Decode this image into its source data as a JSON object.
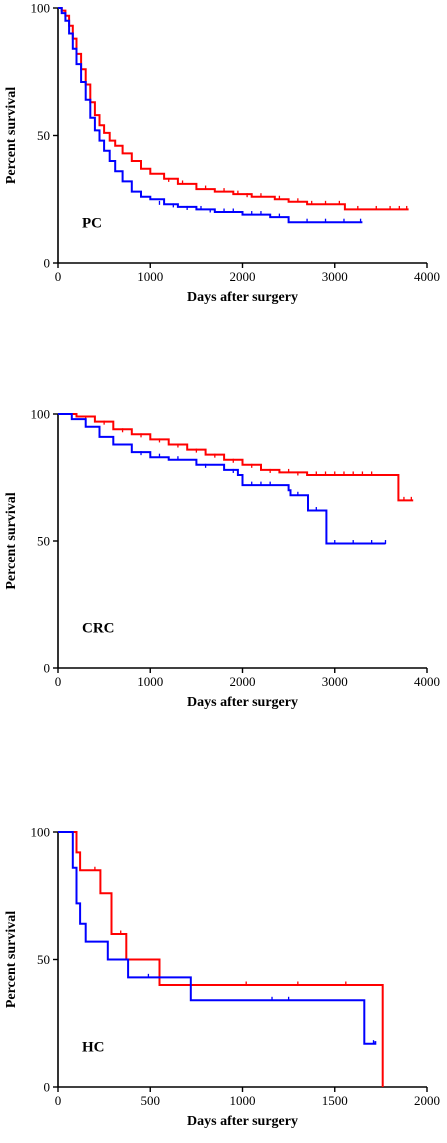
{
  "chart_data": [
    {
      "type": "line",
      "chart_kind": "kaplan-meier step survival curve",
      "panel_label": "PC",
      "xlabel": "Days after surgery",
      "ylabel": "Percent survival",
      "xlim": [
        0,
        4000
      ],
      "ylim": [
        0,
        100
      ],
      "xticks": [
        0,
        1000,
        2000,
        3000,
        4000
      ],
      "yticks": [
        0,
        50,
        100
      ],
      "grid": false,
      "legend": "none",
      "series": [
        {
          "color": "#ff0000",
          "points": [
            [
              0,
              100
            ],
            [
              40,
              99
            ],
            [
              80,
              97
            ],
            [
              120,
              93
            ],
            [
              160,
              88
            ],
            [
              200,
              82
            ],
            [
              250,
              76
            ],
            [
              300,
              70
            ],
            [
              350,
              63
            ],
            [
              400,
              58
            ],
            [
              450,
              54
            ],
            [
              500,
              51
            ],
            [
              560,
              48
            ],
            [
              620,
              46
            ],
            [
              700,
              43
            ],
            [
              800,
              40
            ],
            [
              900,
              37
            ],
            [
              1000,
              35
            ],
            [
              1150,
              33
            ],
            [
              1300,
              31
            ],
            [
              1500,
              29
            ],
            [
              1700,
              28
            ],
            [
              1900,
              27
            ],
            [
              2100,
              26
            ],
            [
              2350,
              25
            ],
            [
              2500,
              24
            ],
            [
              2700,
              23
            ],
            [
              3100,
              23
            ],
            [
              3110,
              21
            ],
            [
              3800,
              21
            ]
          ],
          "censor_marks": [
            [
              1200,
              32
            ],
            [
              1350,
              31
            ],
            [
              1600,
              29
            ],
            [
              1800,
              28
            ],
            [
              1950,
              27
            ],
            [
              2050,
              26
            ],
            [
              2200,
              26
            ],
            [
              2400,
              25
            ],
            [
              2600,
              24
            ],
            [
              2750,
              23
            ],
            [
              2900,
              23
            ],
            [
              3050,
              23
            ],
            [
              3250,
              21
            ],
            [
              3450,
              21
            ],
            [
              3600,
              21
            ],
            [
              3700,
              21
            ],
            [
              3780,
              21
            ]
          ]
        },
        {
          "color": "#0000ff",
          "points": [
            [
              0,
              100
            ],
            [
              40,
              98
            ],
            [
              80,
              95
            ],
            [
              120,
              90
            ],
            [
              160,
              84
            ],
            [
              200,
              78
            ],
            [
              250,
              71
            ],
            [
              300,
              64
            ],
            [
              350,
              57
            ],
            [
              400,
              52
            ],
            [
              450,
              48
            ],
            [
              500,
              44
            ],
            [
              560,
              40
            ],
            [
              620,
              36
            ],
            [
              700,
              32
            ],
            [
              800,
              28
            ],
            [
              900,
              26
            ],
            [
              1000,
              25
            ],
            [
              1150,
              23
            ],
            [
              1300,
              22
            ],
            [
              1500,
              21
            ],
            [
              1700,
              20
            ],
            [
              2000,
              19
            ],
            [
              2300,
              18
            ],
            [
              2500,
              16
            ],
            [
              3300,
              16
            ]
          ],
          "censor_marks": [
            [
              1100,
              23
            ],
            [
              1250,
              22
            ],
            [
              1400,
              21
            ],
            [
              1550,
              21
            ],
            [
              1650,
              20
            ],
            [
              1800,
              20
            ],
            [
              1900,
              20
            ],
            [
              2100,
              19
            ],
            [
              2200,
              19
            ],
            [
              2400,
              18
            ],
            [
              2700,
              16
            ],
            [
              2900,
              16
            ],
            [
              3100,
              16
            ],
            [
              3280,
              16
            ]
          ]
        }
      ]
    },
    {
      "type": "line",
      "chart_kind": "kaplan-meier step survival curve",
      "panel_label": "CRC",
      "xlabel": "Days after surgery",
      "ylabel": "Percent survival",
      "xlim": [
        0,
        4000
      ],
      "ylim": [
        0,
        100
      ],
      "xticks": [
        0,
        1000,
        2000,
        3000,
        4000
      ],
      "yticks": [
        0,
        50,
        100
      ],
      "grid": false,
      "legend": "none",
      "series": [
        {
          "color": "#ff0000",
          "points": [
            [
              0,
              100
            ],
            [
              200,
              99
            ],
            [
              400,
              97
            ],
            [
              600,
              94
            ],
            [
              800,
              92
            ],
            [
              1000,
              90
            ],
            [
              1200,
              88
            ],
            [
              1400,
              86
            ],
            [
              1600,
              84
            ],
            [
              1800,
              82
            ],
            [
              2000,
              80
            ],
            [
              2200,
              78
            ],
            [
              2400,
              77
            ],
            [
              2700,
              76
            ],
            [
              3680,
              76
            ],
            [
              3690,
              66
            ],
            [
              3850,
              66
            ]
          ],
          "censor_marks": [
            [
              300,
              98
            ],
            [
              500,
              96
            ],
            [
              700,
              93
            ],
            [
              900,
              91
            ],
            [
              1100,
              89
            ],
            [
              1300,
              87
            ],
            [
              1500,
              85
            ],
            [
              1700,
              83
            ],
            [
              1900,
              81
            ],
            [
              2100,
              79
            ],
            [
              2300,
              77
            ],
            [
              2500,
              77
            ],
            [
              2600,
              76
            ],
            [
              2800,
              76
            ],
            [
              2900,
              76
            ],
            [
              3000,
              76
            ],
            [
              3100,
              76
            ],
            [
              3200,
              76
            ],
            [
              3300,
              76
            ],
            [
              3400,
              76
            ],
            [
              3750,
              66
            ],
            [
              3830,
              66
            ]
          ]
        },
        {
          "color": "#0000ff",
          "points": [
            [
              0,
              100
            ],
            [
              150,
              98
            ],
            [
              300,
              95
            ],
            [
              450,
              91
            ],
            [
              600,
              88
            ],
            [
              800,
              85
            ],
            [
              1000,
              83
            ],
            [
              1200,
              82
            ],
            [
              1500,
              80
            ],
            [
              1800,
              78
            ],
            [
              1950,
              76
            ],
            [
              2000,
              72
            ],
            [
              2500,
              70
            ],
            [
              2520,
              68
            ],
            [
              2700,
              68
            ],
            [
              2710,
              62
            ],
            [
              2900,
              62
            ],
            [
              2910,
              49
            ],
            [
              3550,
              49
            ]
          ],
          "censor_marks": [
            [
              900,
              84
            ],
            [
              1100,
              83
            ],
            [
              1300,
              82
            ],
            [
              1600,
              79
            ],
            [
              1900,
              77
            ],
            [
              2100,
              72
            ],
            [
              2200,
              72
            ],
            [
              2300,
              72
            ],
            [
              2600,
              68
            ],
            [
              2800,
              62
            ],
            [
              3000,
              49
            ],
            [
              3200,
              49
            ],
            [
              3400,
              49
            ],
            [
              3550,
              49
            ]
          ]
        }
      ]
    },
    {
      "type": "line",
      "chart_kind": "kaplan-meier step survival curve",
      "panel_label": "HC",
      "xlabel": "Days after surgery",
      "ylabel": "Percent survival",
      "xlim": [
        0,
        2000
      ],
      "ylim": [
        0,
        100
      ],
      "xticks": [
        0,
        500,
        1000,
        1500,
        2000
      ],
      "yticks": [
        0,
        50,
        100
      ],
      "grid": false,
      "legend": "none",
      "series": [
        {
          "color": "#ff0000",
          "points": [
            [
              0,
              100
            ],
            [
              100,
              100
            ],
            [
              100,
              92
            ],
            [
              120,
              92
            ],
            [
              120,
              85
            ],
            [
              230,
              85
            ],
            [
              230,
              76
            ],
            [
              290,
              76
            ],
            [
              290,
              60
            ],
            [
              370,
              60
            ],
            [
              370,
              50
            ],
            [
              550,
              50
            ],
            [
              550,
              40
            ],
            [
              1760,
              40
            ],
            [
              1760,
              0
            ]
          ],
          "censor_marks": [
            [
              200,
              85
            ],
            [
              340,
              60
            ],
            [
              1020,
              40
            ],
            [
              1300,
              40
            ],
            [
              1560,
              40
            ]
          ]
        },
        {
          "color": "#0000ff",
          "points": [
            [
              0,
              100
            ],
            [
              80,
              100
            ],
            [
              80,
              86
            ],
            [
              100,
              86
            ],
            [
              100,
              72
            ],
            [
              120,
              72
            ],
            [
              120,
              64
            ],
            [
              150,
              64
            ],
            [
              150,
              57
            ],
            [
              270,
              57
            ],
            [
              270,
              50
            ],
            [
              380,
              50
            ],
            [
              380,
              43
            ],
            [
              720,
              43
            ],
            [
              720,
              34
            ],
            [
              1660,
              34
            ],
            [
              1660,
              17
            ],
            [
              1720,
              17
            ],
            [
              1720,
              18
            ]
          ],
          "censor_marks": [
            [
              490,
              43
            ],
            [
              1160,
              34
            ],
            [
              1250,
              34
            ],
            [
              1710,
              17
            ]
          ]
        }
      ]
    }
  ]
}
